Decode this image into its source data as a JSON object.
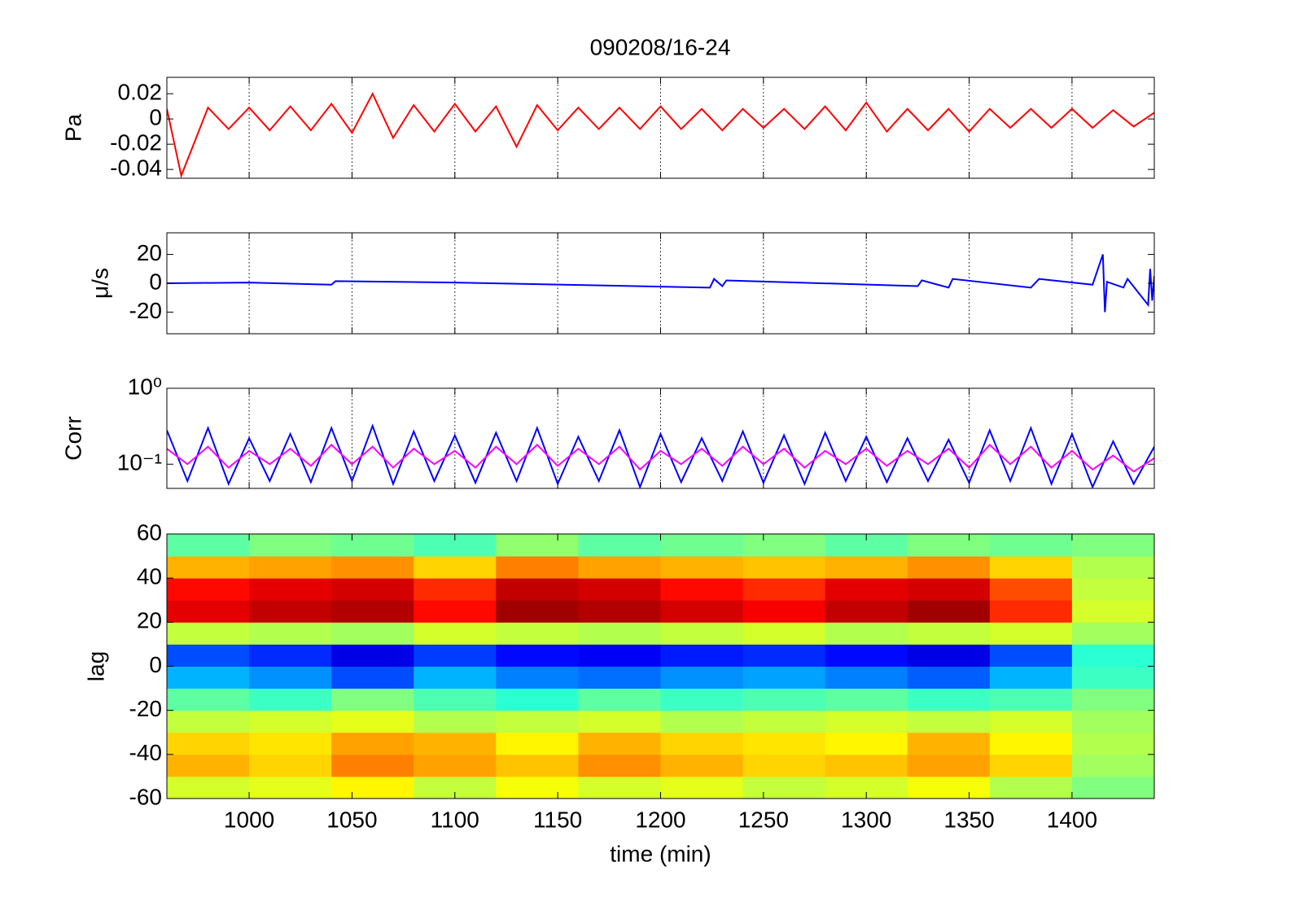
{
  "chart_data": [
    {
      "type": "line",
      "title": "090208/16-24",
      "ylabel": "Pa",
      "x": [
        960,
        967,
        980,
        990,
        1000,
        1010,
        1020,
        1030,
        1040,
        1050,
        1060,
        1070,
        1080,
        1090,
        1100,
        1110,
        1120,
        1130,
        1140,
        1150,
        1160,
        1170,
        1180,
        1190,
        1200,
        1210,
        1220,
        1230,
        1240,
        1250,
        1260,
        1270,
        1280,
        1290,
        1300,
        1310,
        1320,
        1330,
        1340,
        1350,
        1360,
        1370,
        1380,
        1390,
        1400,
        1410,
        1420,
        1430,
        1440
      ],
      "series": [
        {
          "color": "#ff0000",
          "values": [
            0.008,
            -0.045,
            0.009,
            -0.008,
            0.009,
            -0.009,
            0.01,
            -0.009,
            0.012,
            -0.011,
            0.02,
            -0.015,
            0.011,
            -0.01,
            0.012,
            -0.01,
            0.01,
            -0.022,
            0.011,
            -0.009,
            0.009,
            -0.008,
            0.009,
            -0.008,
            0.01,
            -0.008,
            0.008,
            -0.009,
            0.008,
            -0.007,
            0.008,
            -0.008,
            0.01,
            -0.009,
            0.013,
            -0.01,
            0.008,
            -0.009,
            0.008,
            -0.01,
            0.008,
            -0.007,
            0.008,
            -0.007,
            0.008,
            -0.007,
            0.007,
            -0.006,
            0.005
          ]
        }
      ],
      "xlim": [
        960,
        1440
      ],
      "xticks": [
        1000,
        1050,
        1100,
        1150,
        1200,
        1250,
        1300,
        1350,
        1400
      ],
      "ylim": [
        -0.047,
        0.033
      ],
      "yticks": [
        -0.04,
        -0.02,
        0,
        0.02
      ],
      "grid": "x"
    },
    {
      "type": "line",
      "ylabel": "μ/s",
      "x": [
        960,
        1000,
        1040,
        1042,
        1100,
        1224,
        1226,
        1230,
        1232,
        1325,
        1327,
        1340,
        1342,
        1380,
        1384,
        1410,
        1415,
        1416,
        1417,
        1425,
        1427,
        1437,
        1438,
        1439,
        1440
      ],
      "series": [
        {
          "color": "#0000ff",
          "values": [
            0,
            0.5,
            -1,
            1.5,
            0.5,
            -3,
            3,
            -2,
            2,
            -2,
            2,
            -3,
            3,
            -3,
            3,
            -1,
            20,
            -20,
            1,
            -3,
            3,
            -15,
            10,
            -12,
            5
          ]
        }
      ],
      "xlim": [
        960,
        1440
      ],
      "xticks": [
        1000,
        1050,
        1100,
        1150,
        1200,
        1250,
        1300,
        1350,
        1400
      ],
      "ylim": [
        -35,
        35
      ],
      "yticks": [
        -20,
        0,
        20
      ],
      "grid": "x"
    },
    {
      "type": "line",
      "ylabel": "Corr",
      "log": true,
      "x": [
        960,
        970,
        980,
        990,
        1000,
        1010,
        1020,
        1030,
        1040,
        1050,
        1060,
        1070,
        1080,
        1090,
        1100,
        1110,
        1120,
        1130,
        1140,
        1150,
        1160,
        1170,
        1180,
        1190,
        1200,
        1210,
        1220,
        1230,
        1240,
        1250,
        1260,
        1270,
        1280,
        1290,
        1300,
        1310,
        1320,
        1330,
        1340,
        1350,
        1360,
        1370,
        1380,
        1390,
        1400,
        1410,
        1420,
        1430,
        1440
      ],
      "series": [
        {
          "color": "#0000ff",
          "values": [
            0.28,
            0.06,
            0.3,
            0.055,
            0.22,
            0.06,
            0.25,
            0.058,
            0.3,
            0.06,
            0.32,
            0.055,
            0.27,
            0.06,
            0.24,
            0.057,
            0.26,
            0.06,
            0.3,
            0.055,
            0.23,
            0.06,
            0.28,
            0.05,
            0.25,
            0.058,
            0.22,
            0.06,
            0.27,
            0.057,
            0.24,
            0.055,
            0.26,
            0.06,
            0.23,
            0.058,
            0.22,
            0.06,
            0.21,
            0.057,
            0.28,
            0.06,
            0.3,
            0.055,
            0.25,
            0.05,
            0.2,
            0.055,
            0.17
          ]
        },
        {
          "color": "#ff00ff",
          "values": [
            0.16,
            0.1,
            0.17,
            0.09,
            0.15,
            0.1,
            0.16,
            0.095,
            0.18,
            0.1,
            0.17,
            0.09,
            0.16,
            0.1,
            0.15,
            0.09,
            0.17,
            0.1,
            0.18,
            0.095,
            0.16,
            0.1,
            0.17,
            0.085,
            0.15,
            0.1,
            0.16,
            0.095,
            0.17,
            0.1,
            0.16,
            0.09,
            0.15,
            0.1,
            0.16,
            0.095,
            0.15,
            0.1,
            0.16,
            0.09,
            0.18,
            0.1,
            0.17,
            0.09,
            0.15,
            0.085,
            0.13,
            0.08,
            0.12
          ]
        }
      ],
      "xlim": [
        960,
        1440
      ],
      "xticks": [
        1000,
        1050,
        1100,
        1150,
        1200,
        1250,
        1300,
        1350,
        1400
      ],
      "ylim": [
        0.048,
        1
      ],
      "yticks": [
        {
          "value": 0.1,
          "label": "10⁻¹"
        },
        {
          "value": 1,
          "label": "10⁰"
        }
      ],
      "grid": "x"
    },
    {
      "type": "heatmap",
      "ylabel": "lag",
      "xlabel": "time (min)",
      "colormap": "jet",
      "x": [
        960,
        1000,
        1040,
        1080,
        1120,
        1160,
        1200,
        1240,
        1280,
        1320,
        1360,
        1400,
        1440
      ],
      "y": [
        -60,
        -50,
        -40,
        -30,
        -20,
        -10,
        0,
        10,
        20,
        30,
        40,
        50,
        60
      ],
      "z": [
        [
          0.05,
          0.06,
          0.08,
          0.04,
          0.07,
          0.05,
          0.06,
          0.04,
          0.05,
          0.07,
          0.03,
          0
        ],
        [
          0.12,
          0.1,
          0.15,
          0.13,
          0.11,
          0.14,
          0.12,
          0.1,
          0.11,
          0.13,
          0.1,
          0.02
        ],
        [
          0.1,
          0.09,
          0.13,
          0.12,
          0.08,
          0.12,
          0.1,
          0.09,
          0.08,
          0.12,
          0.08,
          0.03
        ],
        [
          0.04,
          0.05,
          0.06,
          0.03,
          0.04,
          0.05,
          0.03,
          0.04,
          0.05,
          0.04,
          0.05,
          0.02
        ],
        [
          -0.02,
          -0.04,
          0,
          -0.03,
          -0.05,
          -0.02,
          -0.04,
          -0.03,
          -0.02,
          -0.04,
          -0.03,
          0
        ],
        [
          -0.12,
          -0.14,
          -0.18,
          -0.12,
          -0.15,
          -0.16,
          -0.14,
          -0.13,
          -0.15,
          -0.17,
          -0.12,
          -0.04
        ],
        [
          -0.18,
          -0.2,
          -0.24,
          -0.19,
          -0.22,
          -0.23,
          -0.21,
          -0.2,
          -0.22,
          -0.24,
          -0.18,
          -0.05
        ],
        [
          0.04,
          0.03,
          0.02,
          0.05,
          0.04,
          0.03,
          0.04,
          0.05,
          0.03,
          0.04,
          0.05,
          0.02
        ],
        [
          0.24,
          0.26,
          0.27,
          0.22,
          0.28,
          0.27,
          0.25,
          0.23,
          0.26,
          0.28,
          0.2,
          0.05
        ],
        [
          0.22,
          0.24,
          0.25,
          0.2,
          0.26,
          0.25,
          0.22,
          0.2,
          0.24,
          0.25,
          0.18,
          0.04
        ],
        [
          0.12,
          0.13,
          0.14,
          0.1,
          0.15,
          0.13,
          0.12,
          0.11,
          0.12,
          0.14,
          0.1,
          0.03
        ],
        [
          -0.02,
          0,
          -0.01,
          -0.03,
          0.01,
          -0.02,
          -0.01,
          0,
          -0.02,
          0,
          -0.01,
          0
        ]
      ],
      "zlim": [
        -0.3,
        0.3
      ],
      "xlim": [
        960,
        1440
      ],
      "xticks": [
        1000,
        1050,
        1100,
        1150,
        1200,
        1250,
        1300,
        1350,
        1400
      ],
      "ylim": [
        -60,
        60
      ],
      "yticks": [
        -60,
        -40,
        -20,
        0,
        20,
        40,
        60
      ]
    }
  ]
}
